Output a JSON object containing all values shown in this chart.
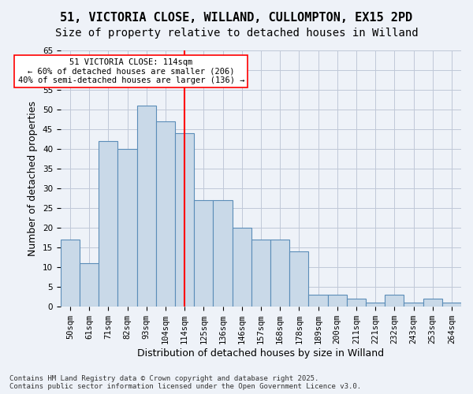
{
  "title_line1": "51, VICTORIA CLOSE, WILLAND, CULLOMPTON, EX15 2PD",
  "title_line2": "Size of property relative to detached houses in Willand",
  "xlabel": "Distribution of detached houses by size in Willand",
  "ylabel": "Number of detached properties",
  "categories": [
    "50sqm",
    "61sqm",
    "71sqm",
    "82sqm",
    "93sqm",
    "104sqm",
    "114sqm",
    "125sqm",
    "136sqm",
    "146sqm",
    "157sqm",
    "168sqm",
    "178sqm",
    "189sqm",
    "200sqm",
    "211sqm",
    "221sqm",
    "232sqm",
    "243sqm",
    "253sqm",
    "264sqm"
  ],
  "values": [
    17,
    11,
    42,
    40,
    51,
    47,
    44,
    27,
    27,
    20,
    17,
    17,
    14,
    3,
    3,
    2,
    1,
    3,
    1,
    2,
    1
  ],
  "bar_color": "#c9d9e8",
  "bar_edge_color": "#5b8db8",
  "highlight_line_index": 6,
  "highlight_line_color": "red",
  "annotation_text": "51 VICTORIA CLOSE: 114sqm\n← 60% of detached houses are smaller (206)\n40% of semi-detached houses are larger (136) →",
  "annotation_box_color": "white",
  "annotation_box_edge_color": "red",
  "ylim": [
    0,
    65
  ],
  "yticks": [
    0,
    5,
    10,
    15,
    20,
    25,
    30,
    35,
    40,
    45,
    50,
    55,
    60,
    65
  ],
  "grid_color": "#c0c8d8",
  "background_color": "#eef2f8",
  "footer_text": "Contains HM Land Registry data © Crown copyright and database right 2025.\nContains public sector information licensed under the Open Government Licence v3.0.",
  "title_fontsize": 11,
  "subtitle_fontsize": 10,
  "axis_label_fontsize": 9,
  "tick_fontsize": 7.5,
  "annotation_fontsize": 7.5,
  "footer_fontsize": 6.5
}
